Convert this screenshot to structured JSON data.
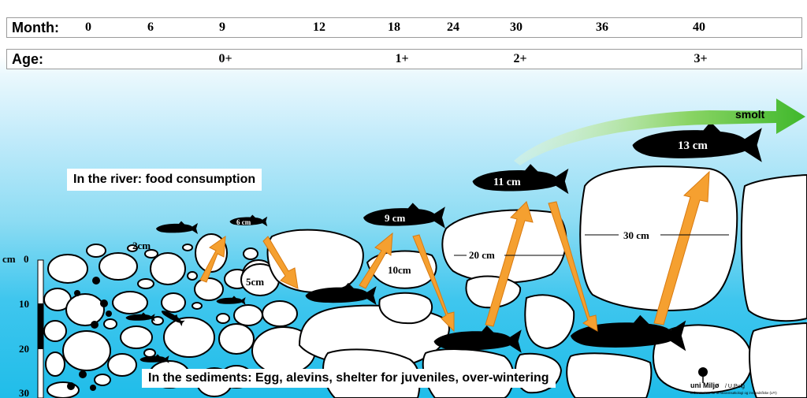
{
  "timeline": {
    "month_label": "Month:",
    "months": [
      "0",
      "6",
      "9",
      "12",
      "18",
      "24",
      "30",
      "36",
      "40"
    ],
    "age_label": "Age:",
    "ages": [
      "0+",
      "1+",
      "2+",
      "3+"
    ]
  },
  "captions": {
    "river": "In the river: food consumption",
    "sediments": "In the sediments: Egg, alevins, shelter for juveniles, over-wintering"
  },
  "stone_sizes": [
    "2cm",
    "5cm",
    "10cm",
    "20 cm",
    "30 cm"
  ],
  "fish_sizes": [
    "6 cm",
    "9 cm",
    "11 cm",
    "13 cm"
  ],
  "smolt_label": "smolt",
  "depth_scale": {
    "unit": "cm",
    "ticks": [
      "0",
      "10",
      "20",
      "30"
    ]
  },
  "logo": {
    "name": "uni Miljø",
    "credit": "/ U.Pulg",
    "subtitle": "Laboratorium for ferskvannsøkologi og innlandsfiske (LFI)"
  },
  "colors": {
    "water": "#3fc6ee",
    "arrow": "#f5a030",
    "smolt_arrow": "#3fb82b",
    "stone": "#ffffff"
  }
}
